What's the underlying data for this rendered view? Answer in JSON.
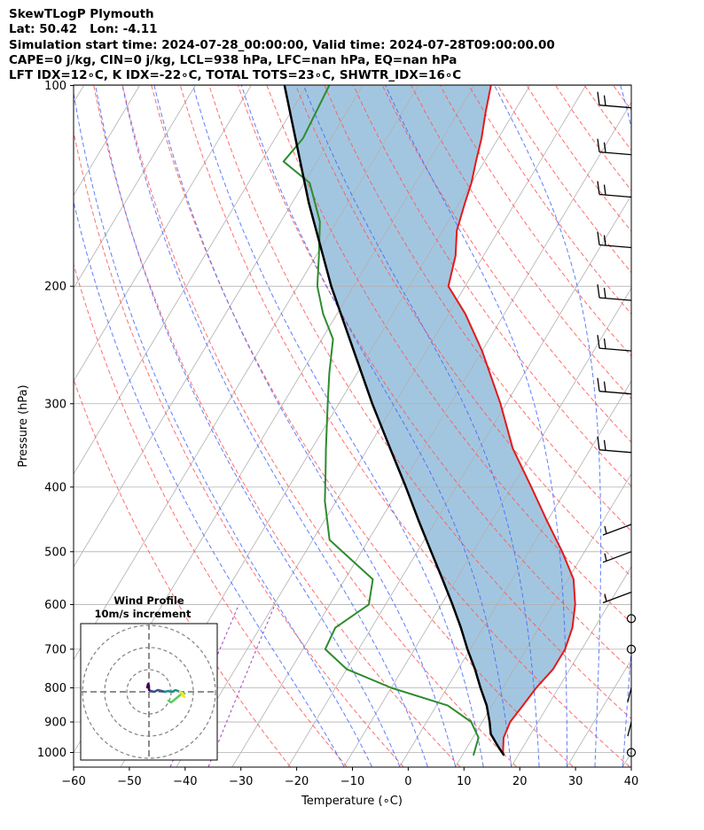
{
  "header": {
    "line1": "SkewTLogP Plymouth",
    "line2": "Lat: 50.42   Lon: -4.11",
    "line3": "Simulation start time: 2024-07-28_00:00:00, Valid time: 2024-07-28T09:00:00.00",
    "line4": "CAPE=0 j/kg, CIN=0 j/kg, LCL=938 hPa, LFC=nan hPa, EQ=nan hPa",
    "line5": "LFT IDX=12∘C, K IDX=-22∘C, TOTAL TOTS=23∘C, SHWTR_IDX=16∘C"
  },
  "chart_data": {
    "type": "skewt",
    "xlabel": "Temperature (∘C)",
    "ylabel": "Pressure (hPa)",
    "xlim": [
      -60,
      40
    ],
    "ylim": [
      1050,
      100
    ],
    "xticks": [
      -60,
      -50,
      -40,
      -30,
      -20,
      -10,
      0,
      10,
      20,
      30,
      40
    ],
    "xtick_labels": [
      "−60",
      "−50",
      "−40",
      "−30",
      "−20",
      "−10",
      "0",
      "10",
      "20",
      "30",
      "40"
    ],
    "yticks": [
      1000,
      900,
      800,
      700,
      600,
      500,
      400,
      300,
      200,
      100
    ],
    "ytick_labels": [
      "1000",
      "900",
      "800",
      "700",
      "600",
      "500",
      "400",
      "300",
      "200",
      "100"
    ],
    "log_y": true,
    "grid": true,
    "colors": {
      "temperature": "#e31a1c",
      "dewpoint": "#2e8b2e",
      "parcel": "#000000",
      "shade": "#a3c6e0",
      "dry_adiabats": "#ff5555",
      "moist_adiabats": "#4466ff",
      "mixing_ratio": "#a040c0",
      "isotherms": "#b0b0b0"
    },
    "series": [
      {
        "role": "temperature",
        "points": [
          [
            1010,
            17.5
          ],
          [
            1000,
            17.0
          ],
          [
            950,
            15.5
          ],
          [
            900,
            15.0
          ],
          [
            850,
            15.5
          ],
          [
            800,
            16.0
          ],
          [
            750,
            17.0
          ],
          [
            700,
            17.0
          ],
          [
            650,
            16.0
          ],
          [
            600,
            14.0
          ],
          [
            550,
            11.0
          ],
          [
            500,
            6.0
          ],
          [
            450,
            0.0
          ],
          [
            400,
            -6.5
          ],
          [
            350,
            -14.0
          ],
          [
            300,
            -21.0
          ],
          [
            250,
            -30.0
          ],
          [
            220,
            -37.0
          ],
          [
            200,
            -43.0
          ],
          [
            180,
            -45.0
          ],
          [
            165,
            -47.5
          ],
          [
            150,
            -49.0
          ],
          [
            140,
            -50.0
          ],
          [
            130,
            -51.5
          ],
          [
            120,
            -53.0
          ],
          [
            110,
            -55.0
          ],
          [
            100,
            -57.0
          ]
        ]
      },
      {
        "role": "dewpoint",
        "points": [
          [
            1010,
            12.0
          ],
          [
            950,
            11.0
          ],
          [
            900,
            8.0
          ],
          [
            850,
            2.0
          ],
          [
            800,
            -10.0
          ],
          [
            750,
            -20.0
          ],
          [
            700,
            -26.0
          ],
          [
            650,
            -26.5
          ],
          [
            600,
            -23.0
          ],
          [
            550,
            -25.0
          ],
          [
            480,
            -37.0
          ],
          [
            420,
            -42.0
          ],
          [
            380,
            -45.0
          ],
          [
            350,
            -47.5
          ],
          [
            300,
            -52.0
          ],
          [
            270,
            -55.0
          ],
          [
            240,
            -58.0
          ],
          [
            220,
            -62.5
          ],
          [
            200,
            -66.5
          ],
          [
            180,
            -69.5
          ],
          [
            160,
            -73.0
          ],
          [
            140,
            -79.0
          ],
          [
            130,
            -86.0
          ],
          [
            120,
            -85.0
          ],
          [
            100,
            -86.0
          ]
        ]
      },
      {
        "role": "parcel",
        "points": [
          [
            1010,
            17.5
          ],
          [
            980,
            15.5
          ],
          [
            938,
            12.8
          ],
          [
            900,
            11.3
          ],
          [
            850,
            9.0
          ],
          [
            800,
            6.0
          ],
          [
            750,
            3.0
          ],
          [
            700,
            -0.5
          ],
          [
            650,
            -4.0
          ],
          [
            600,
            -8.0
          ],
          [
            550,
            -12.5
          ],
          [
            500,
            -17.5
          ],
          [
            450,
            -23.0
          ],
          [
            400,
            -29.0
          ],
          [
            350,
            -36.0
          ],
          [
            300,
            -44.0
          ],
          [
            250,
            -53.0
          ],
          [
            200,
            -64.0
          ],
          [
            150,
            -77.0
          ],
          [
            100,
            -94.0
          ]
        ]
      }
    ],
    "wind_barbs": [
      {
        "p": 1000,
        "style": "calm"
      },
      {
        "p": 900,
        "style": "light"
      },
      {
        "p": 800,
        "style": "light"
      },
      {
        "p": 700,
        "style": "calm"
      },
      {
        "p": 630,
        "style": "calm"
      },
      {
        "p": 575,
        "style": "short"
      },
      {
        "p": 500,
        "style": "short"
      },
      {
        "p": 455,
        "style": "short"
      },
      {
        "p": 355,
        "style": "full"
      },
      {
        "p": 290,
        "style": "full"
      },
      {
        "p": 250,
        "style": "full"
      },
      {
        "p": 210,
        "style": "full"
      },
      {
        "p": 175,
        "style": "full"
      },
      {
        "p": 147,
        "style": "full"
      },
      {
        "p": 127,
        "style": "full"
      },
      {
        "p": 108,
        "style": "full"
      }
    ],
    "inset": {
      "title": "Wind Profile",
      "subtitle": "10m/s increment"
    }
  }
}
